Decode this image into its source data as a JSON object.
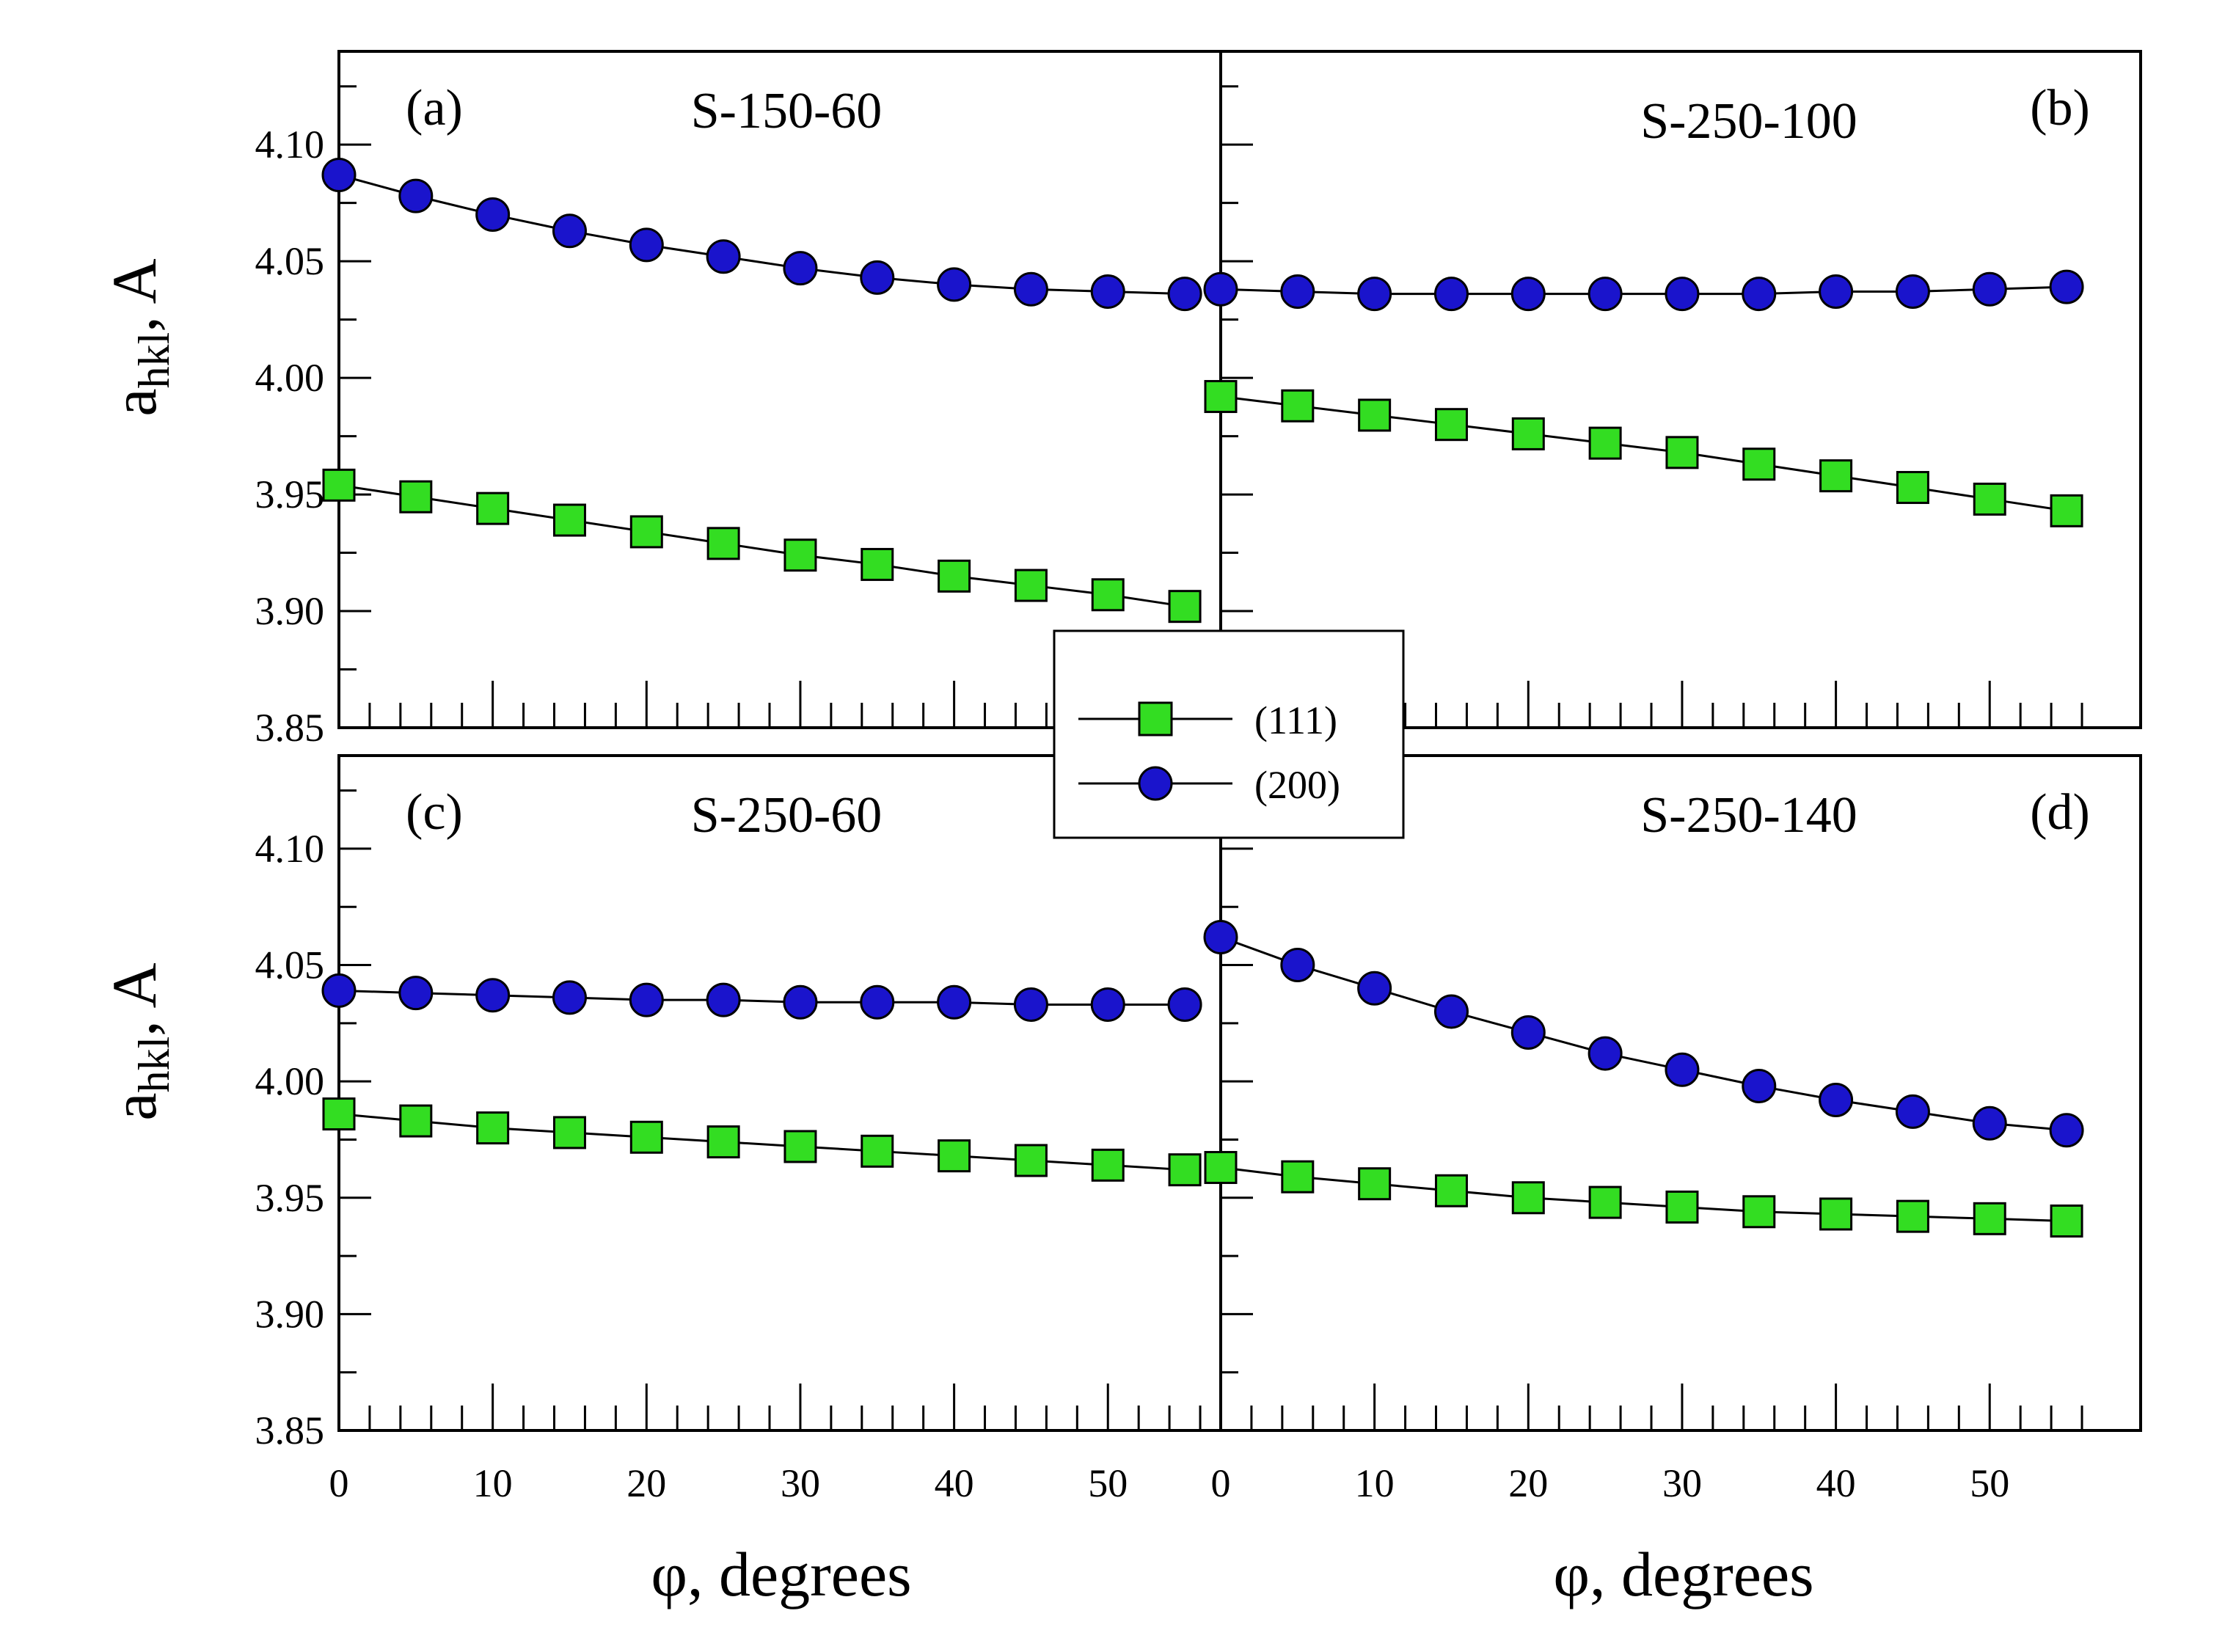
{
  "chart_data": {
    "type": "line",
    "legend": {
      "position": "center",
      "entries": [
        {
          "label": "(111)",
          "marker": "square",
          "color": "#33dd22"
        },
        {
          "label": "(200)",
          "marker": "circle",
          "color": "#1a14cc"
        }
      ]
    },
    "x_tick_labels_left": [
      "0",
      "10",
      "20",
      "30",
      "40",
      "50"
    ],
    "x_tick_labels_right": [
      "0",
      "10",
      "20",
      "30",
      "40",
      "50"
    ],
    "y_tick_labels": [
      "3.85",
      "3.90",
      "3.95",
      "4.00",
      "4.05",
      "4.10"
    ],
    "xlabel_left": "φ, degrees",
    "xlabel_right": "φ, degrees",
    "ylabel_main": "a",
    "ylabel_sub": "hkl",
    "ylabel_suffix": ", A",
    "xlim": [
      0,
      57
    ],
    "ylim": [
      3.85,
      4.14
    ],
    "x": [
      0,
      5,
      10,
      15,
      20,
      25,
      30,
      35,
      40,
      45,
      50,
      55
    ],
    "panels": [
      {
        "id": "a",
        "tag": "(a)",
        "title": "S-150-60",
        "series": [
          {
            "name": "(111)",
            "values": [
              3.954,
              3.949,
              3.944,
              3.939,
              3.934,
              3.929,
              3.924,
              3.92,
              3.915,
              3.911,
              3.907,
              3.902
            ]
          },
          {
            "name": "(200)",
            "values": [
              4.087,
              4.078,
              4.07,
              4.063,
              4.057,
              4.052,
              4.047,
              4.043,
              4.04,
              4.038,
              4.037,
              4.036
            ]
          }
        ]
      },
      {
        "id": "b",
        "tag": "(b)",
        "title": "S-250-100",
        "series": [
          {
            "name": "(111)",
            "values": [
              3.992,
              3.988,
              3.984,
              3.98,
              3.976,
              3.972,
              3.968,
              3.963,
              3.958,
              3.953,
              3.948,
              3.943
            ]
          },
          {
            "name": "(200)",
            "values": [
              4.038,
              4.037,
              4.036,
              4.036,
              4.036,
              4.036,
              4.036,
              4.036,
              4.037,
              4.037,
              4.038,
              4.039
            ]
          }
        ]
      },
      {
        "id": "c",
        "tag": "(c)",
        "title": "S-250-60",
        "series": [
          {
            "name": "(111)",
            "values": [
              3.986,
              3.983,
              3.98,
              3.978,
              3.976,
              3.974,
              3.972,
              3.97,
              3.968,
              3.966,
              3.964,
              3.962
            ]
          },
          {
            "name": "(200)",
            "values": [
              4.039,
              4.038,
              4.037,
              4.036,
              4.035,
              4.035,
              4.034,
              4.034,
              4.034,
              4.033,
              4.033,
              4.033
            ]
          }
        ]
      },
      {
        "id": "d",
        "tag": "(d)",
        "title": "S-250-140",
        "series": [
          {
            "name": "(111)",
            "values": [
              3.963,
              3.959,
              3.956,
              3.953,
              3.95,
              3.948,
              3.946,
              3.944,
              3.943,
              3.942,
              3.941,
              3.94
            ]
          },
          {
            "name": "(200)",
            "values": [
              4.062,
              4.05,
              4.04,
              4.03,
              4.021,
              4.012,
              4.005,
              3.998,
              3.992,
              3.987,
              3.982,
              3.979
            ]
          }
        ]
      }
    ]
  }
}
